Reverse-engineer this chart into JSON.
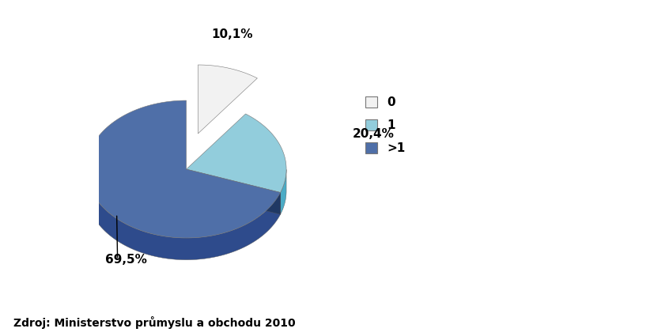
{
  "slices": [
    10.1,
    20.4,
    69.5
  ],
  "labels": [
    "0",
    "1",
    ">1"
  ],
  "top_colors": [
    "#f2f2f2",
    "#92cddc",
    "#4f6fa8"
  ],
  "side_colors": [
    "#bfbfbf",
    "#4bacc6",
    "#2e4b8c"
  ],
  "dark_colors": [
    "#808080",
    "#31849b",
    "#1f3864"
  ],
  "pct_labels": [
    "10,1%",
    "20,4%",
    "69,5%"
  ],
  "legend_labels": [
    "0",
    "1",
    ">1"
  ],
  "source_text": "Zdroj: Ministerstvo průmyslu a obchodu 2010",
  "bg_color": "#ffffff",
  "explode_idx": 0,
  "explode_dist": 0.12
}
